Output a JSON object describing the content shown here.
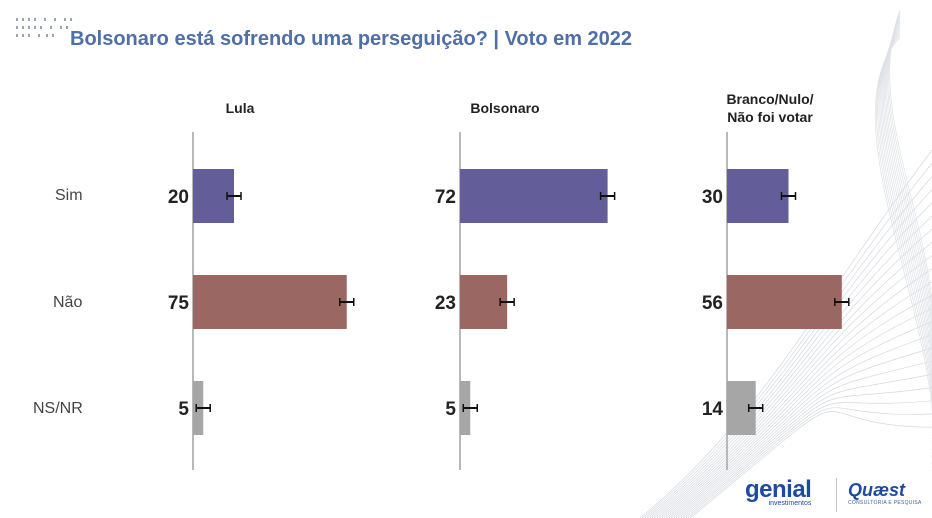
{
  "title": "Bolsonaro está sofrendo uma perseguição? | Voto em 2022",
  "colors": {
    "title": "#4f6fa8",
    "sim": "#635e99",
    "nao": "#9a6763",
    "nsnr": "#a6a6a6",
    "axis": "#b8b8b8"
  },
  "chart_data": {
    "type": "bar",
    "orientation": "horizontal",
    "categories": [
      "Sim",
      "Não",
      "NS/NR"
    ],
    "panels": [
      {
        "name": "Lula",
        "values": [
          20,
          75,
          5
        ]
      },
      {
        "name": "Bolsonaro",
        "values": [
          72,
          23,
          5
        ]
      },
      {
        "name": "Branco/Nulo/\nNão foi votar",
        "values": [
          30,
          56,
          14
        ]
      }
    ],
    "error_bars": true
  },
  "panel_headers": {
    "lula": "Lula",
    "bolsonaro": "Bolsonaro",
    "branco_line1": "Branco/Nulo/",
    "branco_line2": "Não foi votar"
  },
  "category_labels": {
    "sim": "Sim",
    "nao": "Não",
    "nsnr": "NS/NR"
  },
  "logos": {
    "genial_name": "genial",
    "genial_sub": "investimentos",
    "quaest_name": "Quæst",
    "quaest_sub": "CONSULTORIA E PESQUISA"
  }
}
